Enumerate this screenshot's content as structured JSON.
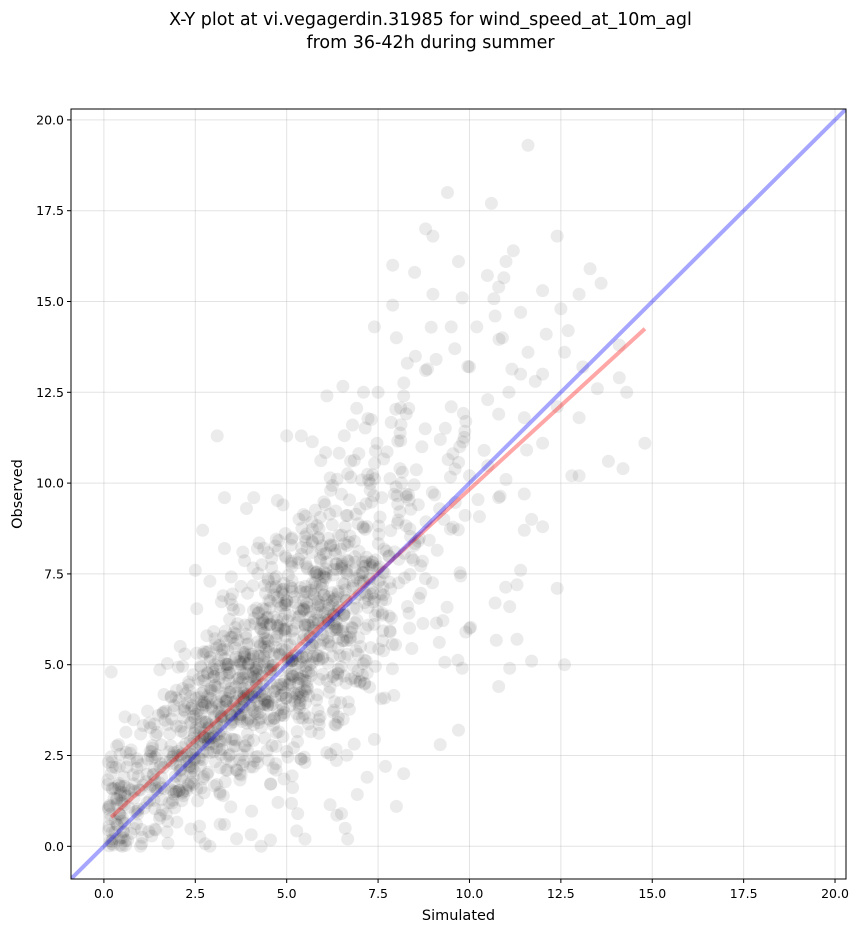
{
  "chart_data": {
    "type": "scatter",
    "title": "X-Y plot at vi.vegagerdin.31985 for wind_speed_at_10m_agl",
    "subtitle": "from 36-42h during summer",
    "xlabel": "Simulated",
    "ylabel": "Observed",
    "xlim": [
      -0.9,
      20.3
    ],
    "ylim": [
      -0.9,
      20.3
    ],
    "xticks": [
      "0.0",
      "2.5",
      "5.0",
      "7.5",
      "10.0",
      "12.5",
      "15.0",
      "17.5",
      "20.0"
    ],
    "yticks": [
      "0.0",
      "2.5",
      "5.0",
      "7.5",
      "10.0",
      "12.5",
      "15.0",
      "17.5",
      "20.0"
    ],
    "grid": true,
    "series": [
      {
        "kind": "points",
        "color": "#000000",
        "opacity": 0.08,
        "n_points": 1500,
        "sample_points": [
          [
            11.6,
            19.3
          ],
          [
            9.4,
            18.0
          ],
          [
            10.6,
            17.7
          ],
          [
            8.8,
            17.0
          ],
          [
            9.0,
            16.8
          ],
          [
            12.4,
            16.8
          ],
          [
            11.2,
            16.4
          ],
          [
            9.7,
            16.1
          ],
          [
            11.0,
            16.1
          ],
          [
            7.9,
            16.0
          ],
          [
            8.5,
            15.8
          ],
          [
            13.3,
            15.9
          ],
          [
            13.6,
            15.5
          ],
          [
            10.8,
            15.4
          ],
          [
            12.0,
            15.3
          ],
          [
            9.0,
            15.2
          ],
          [
            13.0,
            15.2
          ],
          [
            9.8,
            15.1
          ],
          [
            7.9,
            14.9
          ],
          [
            12.5,
            14.8
          ],
          [
            11.4,
            14.7
          ],
          [
            10.7,
            14.6
          ],
          [
            7.4,
            14.3
          ],
          [
            9.5,
            14.3
          ],
          [
            10.2,
            14.3
          ],
          [
            12.1,
            14.1
          ],
          [
            10.9,
            14.0
          ],
          [
            12.7,
            14.2
          ],
          [
            8.0,
            14.0
          ],
          [
            14.1,
            13.8
          ],
          [
            9.6,
            13.7
          ],
          [
            11.6,
            13.6
          ],
          [
            12.6,
            13.6
          ],
          [
            13.1,
            13.2
          ],
          [
            10.0,
            13.2
          ],
          [
            8.3,
            13.3
          ],
          [
            12.0,
            13.0
          ],
          [
            8.8,
            13.1
          ],
          [
            11.4,
            13.0
          ],
          [
            14.1,
            12.9
          ],
          [
            11.8,
            12.8
          ],
          [
            13.5,
            12.6
          ],
          [
            14.3,
            12.5
          ],
          [
            7.1,
            12.5
          ],
          [
            7.5,
            12.5
          ],
          [
            8.2,
            12.4
          ],
          [
            10.5,
            12.3
          ],
          [
            6.1,
            12.4
          ],
          [
            12.4,
            12.1
          ],
          [
            13.0,
            11.8
          ],
          [
            10.8,
            11.9
          ],
          [
            11.5,
            11.8
          ],
          [
            6.8,
            11.6
          ],
          [
            5.4,
            11.3
          ],
          [
            5.0,
            11.3
          ],
          [
            3.1,
            11.3
          ],
          [
            12.0,
            11.1
          ],
          [
            14.8,
            11.1
          ],
          [
            13.8,
            10.6
          ],
          [
            14.2,
            10.4
          ],
          [
            13.0,
            10.2
          ],
          [
            12.8,
            10.2
          ],
          [
            11.0,
            10.1
          ],
          [
            11.5,
            9.7
          ],
          [
            10.8,
            9.6
          ],
          [
            3.3,
            9.6
          ],
          [
            4.1,
            9.6
          ],
          [
            3.9,
            9.3
          ],
          [
            4.9,
            9.4
          ],
          [
            6.2,
            9.8
          ],
          [
            11.7,
            9.0
          ],
          [
            11.5,
            8.7
          ],
          [
            12.0,
            8.8
          ],
          [
            2.7,
            8.7
          ],
          [
            3.3,
            8.2
          ],
          [
            3.8,
            8.1
          ],
          [
            4.2,
            8.2
          ],
          [
            2.5,
            7.6
          ],
          [
            2.9,
            7.3
          ],
          [
            11.4,
            7.6
          ],
          [
            11.3,
            7.2
          ],
          [
            12.4,
            7.1
          ],
          [
            10.7,
            6.7
          ],
          [
            11.1,
            6.6
          ],
          [
            10.0,
            6.0
          ],
          [
            9.9,
            5.9
          ],
          [
            11.3,
            5.7
          ],
          [
            11.7,
            5.1
          ],
          [
            12.6,
            5.0
          ],
          [
            11.1,
            4.9
          ],
          [
            9.8,
            4.9
          ],
          [
            10.8,
            4.4
          ],
          [
            0.2,
            4.8
          ],
          [
            9.2,
            2.8
          ],
          [
            9.7,
            3.2
          ],
          [
            7.7,
            2.2
          ],
          [
            8.2,
            2.0
          ],
          [
            7.2,
            1.9
          ],
          [
            8.0,
            1.1
          ],
          [
            6.6,
            0.5
          ],
          [
            5.5,
            0.2
          ],
          [
            1.0,
            0.0
          ],
          [
            0.5,
            0.0
          ],
          [
            0.3,
            1.6
          ],
          [
            0.1,
            1.7
          ],
          [
            0.4,
            2.8
          ],
          [
            1.6,
            1.0
          ],
          [
            2.9,
            0.0
          ],
          [
            4.3,
            0.0
          ],
          [
            3.3,
            0.6
          ],
          [
            6.5,
            0.9
          ],
          [
            5.3,
            0.9
          ],
          [
            1.2,
            2.4
          ],
          [
            2.1,
            3.3
          ],
          [
            3.7,
            4.5
          ],
          [
            4.5,
            5.5
          ],
          [
            5.6,
            6.1
          ],
          [
            6.3,
            6.8
          ],
          [
            7.1,
            7.3
          ],
          [
            7.8,
            8.0
          ],
          [
            8.6,
            8.4
          ],
          [
            9.3,
            9.0
          ],
          [
            10.0,
            10.2
          ],
          [
            2.3,
            1.7
          ],
          [
            3.0,
            2.6
          ],
          [
            4.4,
            3.9
          ],
          [
            5.1,
            4.6
          ],
          [
            6.0,
            5.2
          ],
          [
            6.8,
            6.0
          ],
          [
            1.8,
            3.1
          ],
          [
            2.6,
            4.1
          ],
          [
            3.4,
            5.0
          ],
          [
            4.0,
            6.1
          ],
          [
            5.5,
            7.0
          ],
          [
            6.2,
            8.3
          ],
          [
            7.0,
            9.3
          ],
          [
            8.1,
            10.4
          ],
          [
            8.7,
            11.0
          ],
          [
            9.5,
            12.1
          ],
          [
            9.9,
            11.7
          ],
          [
            10.4,
            10.9
          ],
          [
            7.6,
            9.6
          ],
          [
            6.6,
            8.8
          ],
          [
            5.9,
            7.5
          ]
        ]
      },
      {
        "kind": "line",
        "color": "#ff0000",
        "opacity": 0.35,
        "points": [
          [
            0.2,
            0.8
          ],
          [
            14.8,
            14.25
          ]
        ]
      },
      {
        "kind": "line",
        "color": "#0000ff",
        "opacity": 0.35,
        "points": [
          [
            -0.9,
            -0.9
          ],
          [
            20.3,
            20.3
          ]
        ]
      }
    ]
  }
}
